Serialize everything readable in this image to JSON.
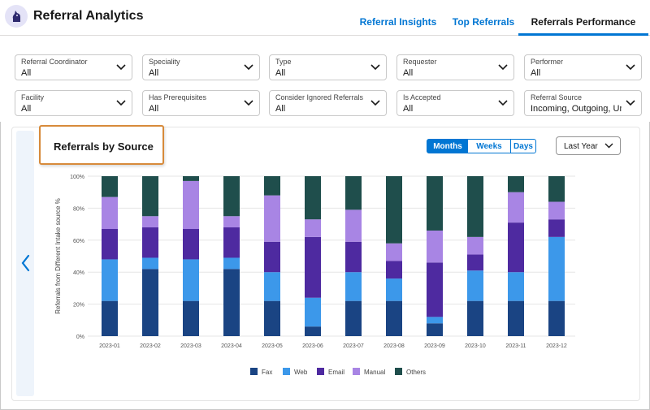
{
  "header": {
    "title": "Referral Analytics",
    "tabs": [
      {
        "label": "Referral Insights",
        "active": false
      },
      {
        "label": "Top Referrals",
        "active": false
      },
      {
        "label": "Referrals Performance",
        "active": true
      }
    ]
  },
  "filters": [
    {
      "label": "Referral Coordinator",
      "value": "All"
    },
    {
      "label": "Speciality",
      "value": "All"
    },
    {
      "label": "Type",
      "value": "All"
    },
    {
      "label": "Requester",
      "value": "All"
    },
    {
      "label": "Performer",
      "value": "All"
    },
    {
      "label": "Facility",
      "value": "All"
    },
    {
      "label": "Has Prerequisites",
      "value": "All"
    },
    {
      "label": "Consider Ignored Referrals",
      "value": "All"
    },
    {
      "label": "Is Accepted",
      "value": "All"
    },
    {
      "label": "Referral Source",
      "value": "Incoming, Outgoing, Un"
    }
  ],
  "card": {
    "title": "Referrals by Source",
    "granularity": [
      "Months",
      "Weeks",
      "Days"
    ],
    "granularity_selected": "Months",
    "date_range": "Last Year"
  },
  "colors": {
    "Fax": "#1a4483",
    "Web": "#3c98ea",
    "Email": "#4e2aa0",
    "Manual": "#a885e4",
    "Others": "#1f4e4c",
    "accent": "#0176d3"
  },
  "chart_data": {
    "type": "bar",
    "stacked": true,
    "ylabel": "Referrals from Different Intake source %",
    "ylim": [
      0,
      100
    ],
    "yticks": [
      "0%",
      "20%",
      "40%",
      "60%",
      "80%",
      "100%"
    ],
    "categories": [
      "2023-01",
      "2023-02",
      "2023-03",
      "2023-04",
      "2023-05",
      "2023-06",
      "2023-07",
      "2023-08",
      "2023-09",
      "2023-10",
      "2023-11",
      "2023-12"
    ],
    "series": [
      {
        "name": "Fax",
        "values": [
          22,
          42,
          22,
          42,
          22,
          6,
          22,
          22,
          8,
          22,
          22,
          22
        ]
      },
      {
        "name": "Web",
        "values": [
          26,
          7,
          26,
          7,
          18,
          18,
          18,
          14,
          4,
          19,
          18,
          40
        ]
      },
      {
        "name": "Email",
        "values": [
          19,
          19,
          19,
          19,
          19,
          38,
          19,
          11,
          34,
          10,
          31,
          11
        ]
      },
      {
        "name": "Manual",
        "values": [
          20,
          7,
          30,
          7,
          29,
          11,
          20,
          11,
          20,
          11,
          19,
          11
        ]
      },
      {
        "name": "Others",
        "values": [
          13,
          25,
          3,
          25,
          12,
          27,
          21,
          42,
          34,
          38,
          10,
          16
        ]
      }
    ],
    "legend_position": "bottom",
    "grid": true
  }
}
